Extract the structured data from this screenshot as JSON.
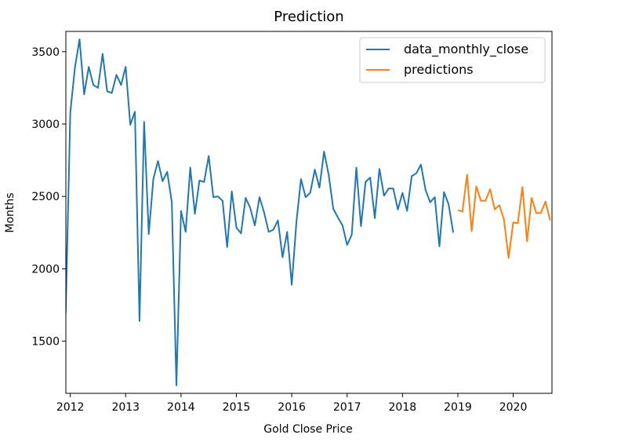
{
  "chart_data": {
    "type": "line",
    "title": "Prediction",
    "xlabel": "Gold Close Price",
    "ylabel": "Months",
    "xlim": [
      2011.92,
      2020.7
    ],
    "ylim": [
      1140,
      3640
    ],
    "x_ticks": [
      "2012",
      "2013",
      "2014",
      "2015",
      "2016",
      "2017",
      "2018",
      "2019",
      "2020"
    ],
    "y_ticks": [
      "1500",
      "2000",
      "2500",
      "3000",
      "3500"
    ],
    "grid": false,
    "legend_position": "top-right",
    "series": [
      {
        "name": "data_monthly_close",
        "color": "#1f77b4",
        "start": 2011.917,
        "step": 0.08333,
        "values": [
          1695,
          3080,
          3390,
          3585,
          3205,
          3395,
          3270,
          3250,
          3485,
          3225,
          3215,
          3340,
          3270,
          3395,
          2995,
          3085,
          1640,
          3015,
          2240,
          2620,
          2745,
          2605,
          2670,
          2460,
          1195,
          2400,
          2255,
          2700,
          2380,
          2610,
          2600,
          2780,
          2495,
          2500,
          2470,
          2150,
          2535,
          2285,
          2245,
          2490,
          2420,
          2300,
          2495,
          2390,
          2255,
          2270,
          2335,
          2080,
          2255,
          1890,
          2320,
          2620,
          2495,
          2525,
          2685,
          2560,
          2810,
          2650,
          2415,
          2355,
          2300,
          2165,
          2235,
          2700,
          2295,
          2600,
          2630,
          2350,
          2690,
          2505,
          2555,
          2555,
          2410,
          2525,
          2400,
          2640,
          2660,
          2720,
          2545,
          2460,
          2495,
          2155,
          2530,
          2445,
          2250
        ]
      },
      {
        "name": "predictions",
        "color": "#ff7f0e",
        "start": 2019.0,
        "step": 0.08333,
        "values": [
          2405,
          2395,
          2650,
          2260,
          2570,
          2470,
          2470,
          2550,
          2410,
          2440,
          2340,
          2075,
          2320,
          2315,
          2565,
          2190,
          2490,
          2385,
          2385,
          2465,
          2335
        ]
      }
    ]
  }
}
